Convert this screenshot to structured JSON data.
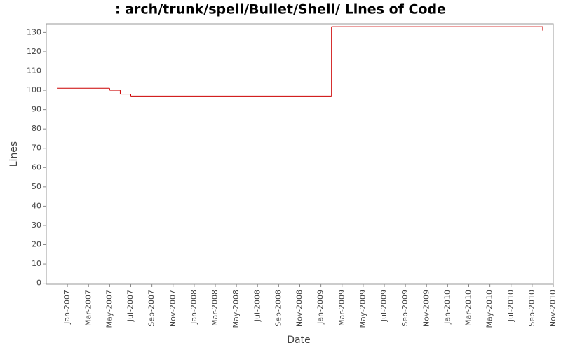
{
  "chart_data": {
    "type": "step",
    "title": ": arch/trunk/spell/Bullet/Shell/ Lines of Code",
    "x_label": "Date",
    "y_label": "Lines",
    "color": "#cc0000",
    "x": [
      "2006-12",
      "2007-05",
      "2007-06",
      "2007-07",
      "2009-02",
      "2010-10"
    ],
    "values": [
      101,
      100,
      98,
      97,
      133,
      131
    ],
    "xlim": [
      "2006-11",
      "2010-11"
    ],
    "xticks": [
      {
        "value": "2007-01",
        "label": "Jan-2007"
      },
      {
        "value": "2007-03",
        "label": "Mar-2007"
      },
      {
        "value": "2007-05",
        "label": "May-2007"
      },
      {
        "value": "2007-07",
        "label": "Jul-2007"
      },
      {
        "value": "2007-09",
        "label": "Sep-2007"
      },
      {
        "value": "2007-11",
        "label": "Nov-2007"
      },
      {
        "value": "2008-01",
        "label": "Jan-2008"
      },
      {
        "value": "2008-03",
        "label": "Mar-2008"
      },
      {
        "value": "2008-05",
        "label": "May-2008"
      },
      {
        "value": "2008-07",
        "label": "Jul-2008"
      },
      {
        "value": "2008-09",
        "label": "Sep-2008"
      },
      {
        "value": "2008-11",
        "label": "Nov-2008"
      },
      {
        "value": "2009-01",
        "label": "Jan-2009"
      },
      {
        "value": "2009-03",
        "label": "Mar-2009"
      },
      {
        "value": "2009-05",
        "label": "May-2009"
      },
      {
        "value": "2009-07",
        "label": "Jul-2009"
      },
      {
        "value": "2009-09",
        "label": "Sep-2009"
      },
      {
        "value": "2009-11",
        "label": "Nov-2009"
      },
      {
        "value": "2010-01",
        "label": "Jan-2010"
      },
      {
        "value": "2010-03",
        "label": "Mar-2010"
      },
      {
        "value": "2010-05",
        "label": "May-2010"
      },
      {
        "value": "2010-07",
        "label": "Jul-2010"
      },
      {
        "value": "2010-09",
        "label": "Sep-2010"
      },
      {
        "value": "2010-11",
        "label": "Nov-2010"
      }
    ],
    "ylim": [
      -0.5,
      134.5
    ],
    "yticks": [
      0,
      10,
      20,
      30,
      40,
      50,
      60,
      70,
      80,
      90,
      100,
      110,
      120,
      130
    ],
    "grid": false
  }
}
